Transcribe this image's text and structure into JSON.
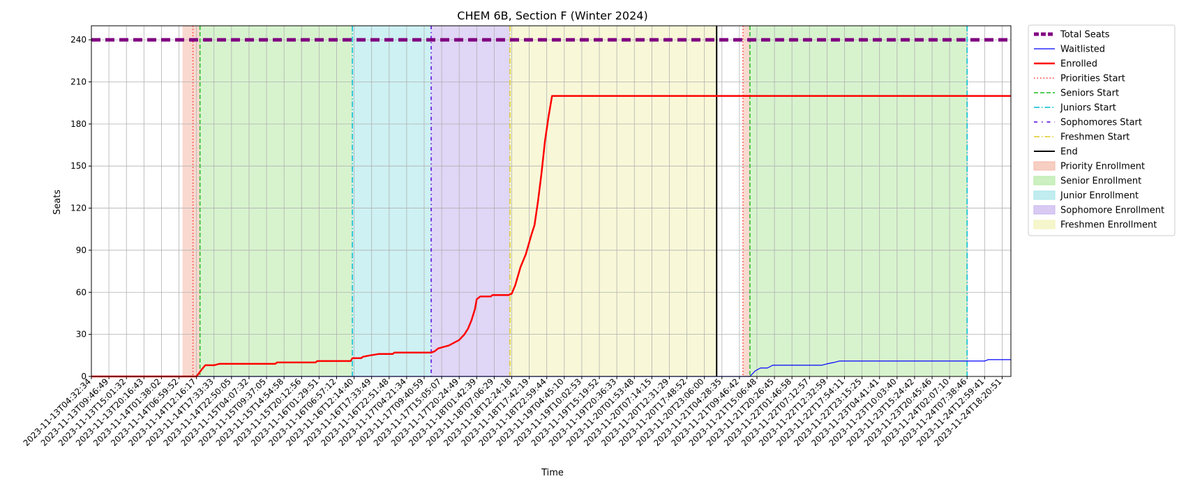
{
  "chart_data": {
    "type": "line",
    "title": "CHEM 6B, Section F (Winter 2024)",
    "xlabel": "Time",
    "ylabel": "Seats",
    "ylim": [
      0,
      250
    ],
    "yticks": [
      0,
      30,
      60,
      90,
      120,
      150,
      180,
      210,
      240
    ],
    "grid": true,
    "legend_position": "outside-right",
    "x_tick_labels": [
      "2023-11-13T04:32:34",
      "2023-11-13T09:46:49",
      "2023-11-13T15:01:32",
      "2023-11-13T20:16:43",
      "2023-11-14T01:38:02",
      "2023-11-14T06:59:52",
      "2023-11-14T12:16:17",
      "2023-11-14T17:33:33",
      "2023-11-14T22:50:05",
      "2023-11-15T04:07:32",
      "2023-11-15T09:37:05",
      "2023-11-15T14:54:58",
      "2023-11-15T20:12:56",
      "2023-11-16T01:29:51",
      "2023-11-16T06:57:12",
      "2023-11-16T12:14:40",
      "2023-11-16T17:33:49",
      "2023-11-16T22:51:48",
      "2023-11-17T04:21:34",
      "2023-11-17T09:40:59",
      "2023-11-17T15:05:07",
      "2023-11-17T20:24:49",
      "2023-11-18T01:42:39",
      "2023-11-18T07:06:29",
      "2023-11-18T12:24:18",
      "2023-11-18T17:42:19",
      "2023-11-18T22:59:44",
      "2023-11-19T04:45:10",
      "2023-11-19T10:02:53",
      "2023-11-19T15:19:52",
      "2023-11-19T20:36:33",
      "2023-11-20T01:53:48",
      "2023-11-20T07:14:15",
      "2023-11-20T12:31:29",
      "2023-11-20T17:48:52",
      "2023-11-20T23:06:00",
      "2023-11-21T04:28:35",
      "2023-11-21T09:46:42",
      "2023-11-21T15:06:48",
      "2023-11-21T20:26:45",
      "2023-11-22T01:46:58",
      "2023-11-22T07:12:57",
      "2023-11-22T12:32:59",
      "2023-11-22T17:54:11",
      "2023-11-22T23:15:25",
      "2023-11-23T04:41:41",
      "2023-11-23T10:03:40",
      "2023-11-23T15:24:42",
      "2023-11-23T20:45:46",
      "2023-11-24T02:07:10",
      "2023-11-24T07:38:46",
      "2023-11-24T12:59:41",
      "2023-11-24T18:20:51"
    ],
    "x_range": [
      0,
      52.5
    ],
    "total_seats": 240,
    "series": [
      {
        "name": "Total Seats",
        "color": "#800080",
        "points": [
          [
            0,
            240
          ],
          [
            52.5,
            240
          ]
        ]
      },
      {
        "name": "Waitlisted",
        "color": "#0000ff",
        "points": [
          [
            0,
            0
          ],
          [
            37.6,
            0
          ],
          [
            37.9,
            4
          ],
          [
            38.2,
            6
          ],
          [
            38.6,
            6
          ],
          [
            38.9,
            8
          ],
          [
            41.7,
            8
          ],
          [
            42,
            9
          ],
          [
            42.4,
            10
          ],
          [
            42.7,
            11
          ],
          [
            50,
            11
          ],
          [
            51,
            11
          ],
          [
            51.2,
            12
          ],
          [
            52.5,
            12
          ]
        ]
      },
      {
        "name": "Enrolled",
        "color": "#ff0000",
        "points": [
          [
            0,
            0
          ],
          [
            6,
            0
          ],
          [
            6.3,
            5
          ],
          [
            6.5,
            8
          ],
          [
            7,
            8
          ],
          [
            7.3,
            9
          ],
          [
            10.5,
            9
          ],
          [
            10.6,
            10
          ],
          [
            12.8,
            10
          ],
          [
            12.9,
            11
          ],
          [
            14.8,
            11
          ],
          [
            14.9,
            13
          ],
          [
            15.4,
            13
          ],
          [
            15.5,
            14
          ],
          [
            15.9,
            15
          ],
          [
            16.4,
            16
          ],
          [
            17.2,
            16
          ],
          [
            17.3,
            17
          ],
          [
            19.4,
            17
          ],
          [
            19.6,
            18
          ],
          [
            19.8,
            20
          ],
          [
            20.1,
            21
          ],
          [
            20.4,
            22
          ],
          [
            20.7,
            24
          ],
          [
            21,
            26
          ],
          [
            21.3,
            30
          ],
          [
            21.5,
            34
          ],
          [
            21.7,
            40
          ],
          [
            21.9,
            48
          ],
          [
            22,
            55
          ],
          [
            22.2,
            57
          ],
          [
            22.8,
            57
          ],
          [
            22.9,
            58
          ],
          [
            23.8,
            58
          ],
          [
            24,
            59
          ],
          [
            24.2,
            65
          ],
          [
            24.5,
            78
          ],
          [
            24.8,
            87
          ],
          [
            25.1,
            100
          ],
          [
            25.3,
            108
          ],
          [
            25.5,
            125
          ],
          [
            25.7,
            145
          ],
          [
            25.9,
            168
          ],
          [
            26.1,
            185
          ],
          [
            26.3,
            200
          ],
          [
            52.5,
            200
          ]
        ]
      }
    ],
    "markers": [
      {
        "name": "Priorities Start",
        "x": 5.8,
        "color": "#ff3333",
        "dash": "1.5,3"
      },
      {
        "name": "Seniors Start",
        "x": 6.2,
        "color": "#22bb22",
        "dash": "6,3"
      },
      {
        "name": "Juniors Start",
        "x": 14.9,
        "color": "#00bcd4",
        "dash": "8,3,1.5,3"
      },
      {
        "name": "Sophomores Start",
        "x": 19.4,
        "color": "#5500dd",
        "dash": "5,4,1.5,4"
      },
      {
        "name": "Freshmen Start",
        "x": 23.9,
        "color": "#ddcc22",
        "dash": "8,3,1.5,3"
      },
      {
        "name": "End",
        "x": 35.7,
        "color": "#000000",
        "dash": ""
      },
      {
        "name": "Priorities Start",
        "x": 37.2,
        "color": "#ff3333",
        "dash": "1.5,3"
      },
      {
        "name": "Seniors Start",
        "x": 37.6,
        "color": "#22bb22",
        "dash": "6,3"
      },
      {
        "name": "Juniors Start",
        "x": 50.0,
        "color": "#00bcd4",
        "dash": "8,3,1.5,3"
      }
    ],
    "regions": [
      {
        "name": "Priority Enrollment",
        "from": 5.2,
        "to": 6.2,
        "color": "#f4b9a8"
      },
      {
        "name": "Senior Enrollment",
        "from": 6.2,
        "to": 14.9,
        "color": "#b6eaa6"
      },
      {
        "name": "Junior Enrollment",
        "from": 14.9,
        "to": 19.4,
        "color": "#a6e6ea"
      },
      {
        "name": "Sophomore Enrollment",
        "from": 19.4,
        "to": 23.9,
        "color": "#c7b4ee"
      },
      {
        "name": "Freshmen Enrollment",
        "from": 23.9,
        "to": 35.7,
        "color": "#f2f2b8"
      },
      {
        "name": "Priority Enrollment",
        "from": 37.2,
        "to": 37.6,
        "color": "#f4b9a8"
      },
      {
        "name": "Senior Enrollment",
        "from": 37.6,
        "to": 50.0,
        "color": "#b6eaa6"
      }
    ],
    "legend": [
      {
        "label": "Total Seats",
        "kind": "line",
        "color": "#800080",
        "dash": "7,3",
        "width": 5
      },
      {
        "label": "Waitlisted",
        "kind": "line",
        "color": "#0000ff",
        "dash": "",
        "width": 1.2
      },
      {
        "label": "Enrolled",
        "kind": "line",
        "color": "#ff0000",
        "dash": "",
        "width": 2.5
      },
      {
        "label": "Priorities Start",
        "kind": "line",
        "color": "#ff3333",
        "dash": "1.5,3",
        "width": 1.5
      },
      {
        "label": "Seniors Start",
        "kind": "line",
        "color": "#22bb22",
        "dash": "6,3",
        "width": 1.5
      },
      {
        "label": "Juniors Start",
        "kind": "line",
        "color": "#00bcd4",
        "dash": "8,3,1.5,3",
        "width": 1.5
      },
      {
        "label": "Sophomores Start",
        "kind": "line",
        "color": "#5500dd",
        "dash": "5,6,1.5,6",
        "width": 1.5
      },
      {
        "label": "Freshmen Start",
        "kind": "line",
        "color": "#ddcc22",
        "dash": "8,3,1.5,3",
        "width": 1.5
      },
      {
        "label": "End",
        "kind": "line",
        "color": "#000000",
        "dash": "",
        "width": 2
      },
      {
        "label": "Priority Enrollment",
        "kind": "patch",
        "color": "#f4b9a8"
      },
      {
        "label": "Senior Enrollment",
        "kind": "patch",
        "color": "#b6eaa6"
      },
      {
        "label": "Junior Enrollment",
        "kind": "patch",
        "color": "#a6e6ea"
      },
      {
        "label": "Sophomore Enrollment",
        "kind": "patch",
        "color": "#c7b4ee"
      },
      {
        "label": "Freshmen Enrollment",
        "kind": "patch",
        "color": "#f2f2b8"
      }
    ]
  }
}
